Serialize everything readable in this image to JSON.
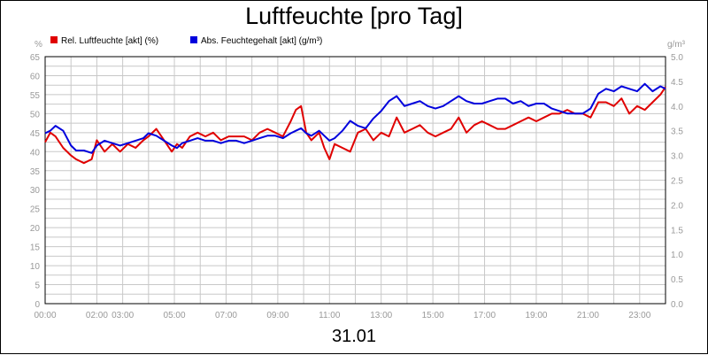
{
  "title": "Luftfeuchte [pro Tag]",
  "date_label": "31.01",
  "chart_data": {
    "type": "line",
    "title": "Luftfeuchte [pro Tag]",
    "xlabel": "31.01",
    "left_unit": "%",
    "right_unit": "g/m³",
    "x_ticks": [
      "00:00",
      "02:00",
      "03:00",
      "05:00",
      "07:00",
      "09:00",
      "11:00",
      "13:00",
      "15:00",
      "17:00",
      "19:00",
      "21:00",
      "23:00"
    ],
    "x_tick_hours": [
      0,
      2,
      3,
      5,
      7,
      9,
      11,
      13,
      15,
      17,
      19,
      21,
      23
    ],
    "xlim": [
      0,
      24
    ],
    "y_left_ticks": [
      "0",
      "5",
      "10",
      "15",
      "20",
      "25",
      "30",
      "35",
      "40",
      "45",
      "50",
      "55",
      "60",
      "65"
    ],
    "y_right_ticks": [
      "0.0",
      "0.5",
      "1.0",
      "1.5",
      "2.0",
      "2.5",
      "3.0",
      "3.5",
      "4.0",
      "4.5",
      "5.0"
    ],
    "ylim_left": [
      0,
      65
    ],
    "ylim_right": [
      0,
      5
    ],
    "grid": true,
    "legend_position": "top-left",
    "series": [
      {
        "name": "Rel. Luftfeuchte [akt] (%)",
        "axis": "left",
        "color": "#e00000",
        "x": [
          0,
          0.2,
          0.4,
          0.7,
          1.0,
          1.2,
          1.5,
          1.8,
          2.0,
          2.3,
          2.6,
          2.9,
          3.2,
          3.5,
          3.8,
          4.0,
          4.3,
          4.6,
          4.9,
          5.1,
          5.3,
          5.6,
          5.9,
          6.2,
          6.5,
          6.8,
          7.1,
          7.4,
          7.7,
          8.0,
          8.3,
          8.6,
          8.9,
          9.2,
          9.5,
          9.7,
          9.9,
          10.1,
          10.3,
          10.6,
          10.8,
          11.0,
          11.2,
          11.5,
          11.8,
          12.1,
          12.4,
          12.7,
          13.0,
          13.3,
          13.6,
          13.9,
          14.2,
          14.5,
          14.8,
          15.1,
          15.4,
          15.7,
          16.0,
          16.3,
          16.6,
          16.9,
          17.2,
          17.5,
          17.8,
          18.1,
          18.4,
          18.7,
          19.0,
          19.3,
          19.6,
          19.9,
          20.2,
          20.5,
          20.8,
          21.1,
          21.4,
          21.7,
          22.0,
          22.3,
          22.6,
          22.9,
          23.2,
          23.5,
          23.8,
          24.0
        ],
        "y": [
          42.5,
          45,
          44,
          41,
          39,
          38,
          37,
          38,
          43,
          40,
          42,
          40,
          42,
          41,
          43,
          44,
          46,
          43,
          40,
          42,
          41,
          44,
          45,
          44,
          45,
          43,
          44,
          44,
          44,
          43,
          45,
          46,
          45,
          44,
          48,
          51,
          52,
          45,
          43,
          45,
          41,
          38,
          42,
          41,
          40,
          45,
          46,
          43,
          45,
          44,
          49,
          45,
          46,
          47,
          45,
          44,
          45,
          46,
          49,
          45,
          47,
          48,
          47,
          46,
          46,
          47,
          48,
          49,
          48,
          49,
          50,
          50,
          51,
          50,
          50,
          49,
          53,
          53,
          52,
          54,
          50,
          52,
          51,
          53,
          55,
          57
        ]
      },
      {
        "name": "Abs. Feuchtegehalt [akt] (g/m³)",
        "axis": "right",
        "color": "#0000dd",
        "x": [
          0,
          0.2,
          0.4,
          0.7,
          1.0,
          1.2,
          1.5,
          1.8,
          2.0,
          2.3,
          2.6,
          2.9,
          3.2,
          3.5,
          3.8,
          4.0,
          4.3,
          4.6,
          4.9,
          5.1,
          5.3,
          5.6,
          5.9,
          6.2,
          6.5,
          6.8,
          7.1,
          7.4,
          7.7,
          8.0,
          8.3,
          8.6,
          8.9,
          9.2,
          9.5,
          9.7,
          9.9,
          10.1,
          10.3,
          10.6,
          10.8,
          11.0,
          11.2,
          11.5,
          11.8,
          12.1,
          12.4,
          12.7,
          13.0,
          13.3,
          13.6,
          13.9,
          14.2,
          14.5,
          14.8,
          15.1,
          15.4,
          15.7,
          16.0,
          16.3,
          16.6,
          16.9,
          17.2,
          17.5,
          17.8,
          18.1,
          18.4,
          18.7,
          19.0,
          19.3,
          19.6,
          19.9,
          20.2,
          20.5,
          20.8,
          21.1,
          21.4,
          21.7,
          22.0,
          22.3,
          22.6,
          22.9,
          23.2,
          23.5,
          23.8,
          24.0
        ],
        "y": [
          3.45,
          3.5,
          3.6,
          3.5,
          3.2,
          3.1,
          3.1,
          3.05,
          3.2,
          3.3,
          3.25,
          3.2,
          3.25,
          3.3,
          3.35,
          3.45,
          3.4,
          3.3,
          3.2,
          3.15,
          3.25,
          3.3,
          3.35,
          3.3,
          3.3,
          3.25,
          3.3,
          3.3,
          3.25,
          3.3,
          3.35,
          3.4,
          3.4,
          3.35,
          3.45,
          3.5,
          3.55,
          3.45,
          3.4,
          3.5,
          3.4,
          3.3,
          3.35,
          3.5,
          3.7,
          3.6,
          3.55,
          3.75,
          3.9,
          4.1,
          4.2,
          4.0,
          4.05,
          4.1,
          4.0,
          3.95,
          4.0,
          4.1,
          4.2,
          4.1,
          4.05,
          4.05,
          4.1,
          4.15,
          4.15,
          4.05,
          4.1,
          4.0,
          4.05,
          4.05,
          3.95,
          3.9,
          3.85,
          3.85,
          3.85,
          3.95,
          4.25,
          4.35,
          4.3,
          4.4,
          4.35,
          4.3,
          4.45,
          4.3,
          4.4,
          4.35
        ]
      }
    ]
  },
  "colors": {
    "rel_series": "#e00000",
    "abs_series": "#0000dd",
    "grid": "#c8c8c8",
    "axis_text": "#999999"
  }
}
